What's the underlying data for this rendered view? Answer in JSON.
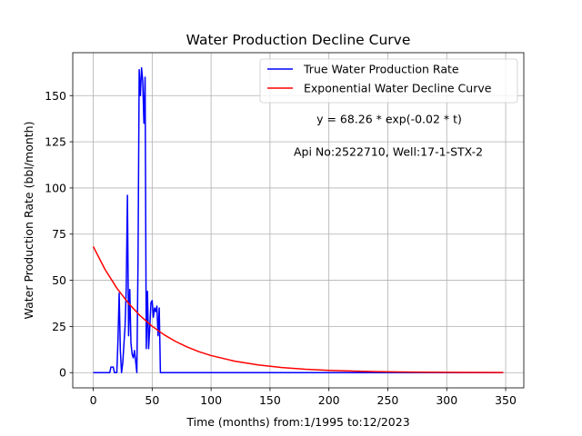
{
  "chart_data": {
    "type": "line",
    "title": "Water Production Decline Curve",
    "xlabel": "Time (months) from:1/1995 to:12/2023",
    "ylabel": "Water Production Rate (bbl/month)",
    "xlim": [
      -17.4,
      365.4
    ],
    "ylim": [
      -8.25,
      173.25
    ],
    "xticks": [
      0,
      50,
      100,
      150,
      200,
      250,
      300,
      350
    ],
    "yticks": [
      0,
      25,
      50,
      75,
      100,
      125,
      150
    ],
    "grid": true,
    "legend_position": "top-right",
    "annotations": [
      "y = 68.26 * exp(-0.02 * t)",
      "Api No:2522710, Well:17-1-STX-2"
    ],
    "series": [
      {
        "name": "True Water Production Rate",
        "color": "#0000ff",
        "x": [
          0,
          1,
          2,
          3,
          4,
          5,
          6,
          7,
          8,
          9,
          10,
          11,
          12,
          13,
          14,
          15,
          16,
          17,
          18,
          19,
          20,
          21,
          22,
          23,
          24,
          25,
          26,
          27,
          28,
          29,
          30,
          31,
          32,
          33,
          34,
          35,
          36,
          37,
          38,
          39,
          40,
          41,
          42,
          43,
          44,
          45,
          46,
          47,
          48,
          49,
          50,
          51,
          52,
          53,
          54,
          55,
          56,
          57,
          58,
          60,
          100,
          150,
          200,
          250,
          300,
          348
        ],
        "y": [
          0,
          0,
          0,
          0,
          0,
          0,
          0,
          0,
          0,
          0,
          0,
          0,
          0,
          0,
          0,
          3,
          3,
          3,
          0,
          0,
          0,
          18,
          43,
          12,
          0,
          5,
          15,
          25,
          46,
          96,
          20,
          45,
          16,
          10,
          8,
          12,
          6,
          0,
          60,
          164,
          150,
          165,
          158,
          135,
          160,
          13,
          44,
          13,
          25,
          38,
          39,
          30,
          35,
          33,
          36,
          20,
          35,
          0,
          0,
          0,
          0,
          0,
          0,
          0,
          0,
          0
        ]
      },
      {
        "name": "Exponential Water Decline Curve",
        "color": "#ff0000",
        "x": [
          0,
          10,
          20,
          30,
          40,
          50,
          60,
          70,
          80,
          90,
          100,
          120,
          140,
          160,
          180,
          200,
          220,
          240,
          260,
          280,
          300,
          320,
          348
        ],
        "y": [
          68.26,
          55.89,
          45.76,
          37.46,
          30.67,
          25.11,
          20.56,
          16.83,
          13.78,
          11.28,
          9.24,
          6.19,
          4.15,
          2.78,
          1.86,
          1.25,
          0.84,
          0.56,
          0.38,
          0.25,
          0.17,
          0.11,
          0.06
        ]
      }
    ]
  }
}
